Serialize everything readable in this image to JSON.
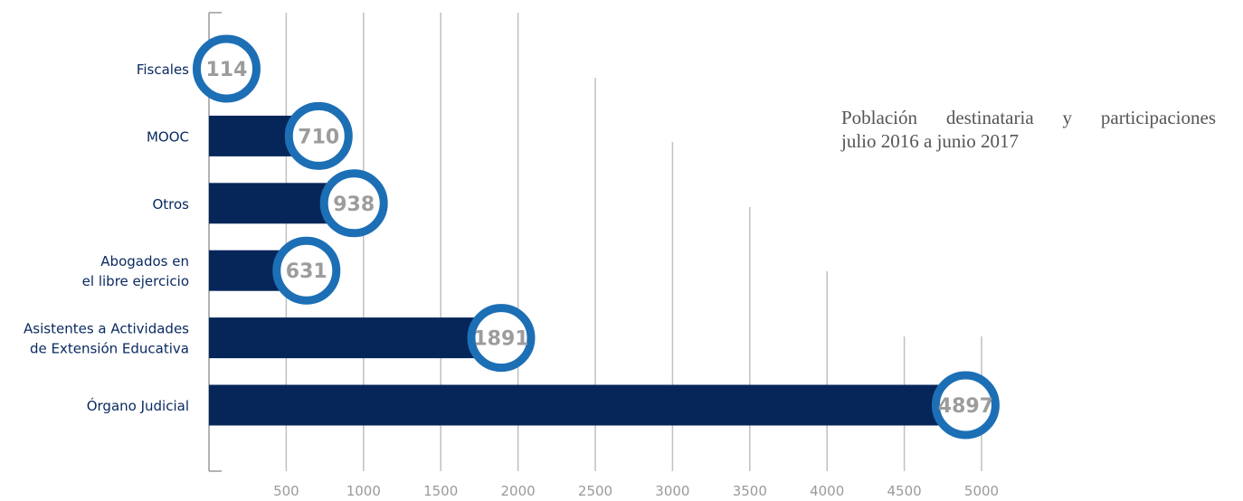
{
  "chart_data": {
    "type": "bar",
    "orientation": "horizontal",
    "title_lines": [
      "Población destinataria y participaciones",
      "julio 2016 a junio 2017"
    ],
    "categories": [
      [
        "Fiscales"
      ],
      [
        "MOOC"
      ],
      [
        "Otros"
      ],
      [
        "Abogados en",
        "el libre ejercicio"
      ],
      [
        "Asistentes a Actividades",
        "de Extensión Educativa"
      ],
      [
        "Órgano Judicial"
      ]
    ],
    "values": [
      114,
      710,
      938,
      631,
      1891,
      4897
    ],
    "value_labels": [
      "114",
      "710",
      "938",
      "631",
      "1891",
      "4897"
    ],
    "x_ticks": [
      500,
      1000,
      1500,
      2000,
      2500,
      3000,
      3500,
      4000,
      4500,
      5000
    ],
    "x_tick_labels": [
      "500",
      "1000",
      "1500",
      "2000",
      "2500",
      "3000",
      "3500",
      "4000",
      "4500",
      "5000"
    ],
    "xlim": [
      0,
      5000
    ],
    "xlabel": "",
    "ylabel": "",
    "grid": true,
    "legend": "none",
    "colors": {
      "bar": "#06265a",
      "marker_ring": "#1c6fb5",
      "marker_fill": "#ffffff",
      "value_text": "#9c9c9c",
      "category_text": "#0a2a60",
      "tick_text": "#9a9a9a",
      "grid": "#c0c0c0",
      "axis": "#9a9a9a"
    }
  }
}
